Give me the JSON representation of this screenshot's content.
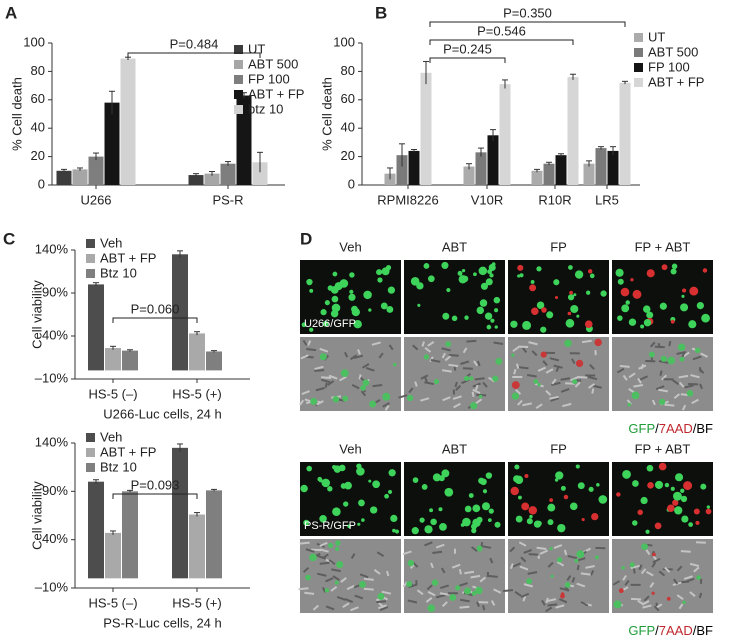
{
  "chart_data": [
    {
      "type": "bar",
      "panel_label": "A",
      "ylabel": "% Cell death",
      "categories": [
        "U266",
        "PS-R"
      ],
      "series": [
        {
          "name": "UT",
          "color": "#3c3c3c",
          "values": [
            10,
            7
          ],
          "errors": [
            1,
            1
          ]
        },
        {
          "name": "ABT 500",
          "color": "#a6a6a6",
          "values": [
            11,
            8
          ],
          "errors": [
            1,
            1.5
          ]
        },
        {
          "name": "FP 100",
          "color": "#7e7e7e",
          "values": [
            20,
            15
          ],
          "errors": [
            2.5,
            1.5
          ]
        },
        {
          "name": "ABT + FP",
          "color": "#151515",
          "values": [
            58,
            63
          ],
          "errors": [
            8,
            2
          ]
        },
        {
          "name": "btz 10",
          "color": "#d2d2d2",
          "values": [
            89,
            16
          ],
          "errors": [
            1,
            7
          ]
        }
      ],
      "ylim": [
        0,
        100
      ],
      "yticks": [
        0,
        20,
        40,
        60,
        80,
        100
      ],
      "annotations": [
        "P=0.484"
      ]
    },
    {
      "type": "bar",
      "panel_label": "B",
      "ylabel": "% Cell death",
      "categories": [
        "RPMI8226",
        "V10R",
        "R10R",
        "LR5"
      ],
      "series": [
        {
          "name": "UT",
          "color": "#ababab",
          "values": [
            8,
            13,
            10,
            15
          ],
          "errors": [
            4,
            2,
            1,
            2
          ]
        },
        {
          "name": "ABT 500",
          "color": "#7a7a7a",
          "values": [
            21,
            23,
            15,
            26
          ],
          "errors": [
            8,
            3,
            1,
            1
          ]
        },
        {
          "name": "FP 100",
          "color": "#141414",
          "values": [
            24,
            35,
            21,
            24
          ],
          "errors": [
            1,
            4,
            1,
            3
          ]
        },
        {
          "name": "ABT + FP",
          "color": "#d6d6d6",
          "values": [
            79,
            71,
            76,
            72
          ],
          "errors": [
            8,
            3,
            2,
            1
          ]
        }
      ],
      "ylim": [
        0,
        100
      ],
      "yticks": [
        0,
        20,
        40,
        60,
        80,
        100
      ],
      "annotations": [
        "P=0.245",
        "P=0.546",
        "P=0.350"
      ]
    },
    {
      "type": "bar",
      "panel_label": "C",
      "ylabel": "Cell viability",
      "xlabel": "U266-Luc cells, 24 h",
      "categories": [
        "HS-5 (–)",
        "HS-5 (+)"
      ],
      "series": [
        {
          "name": "Veh",
          "color": "#4d4d4d",
          "values": [
            100,
            135
          ],
          "errors": [
            2,
            4
          ]
        },
        {
          "name": "ABT + FP",
          "color": "#a9a9a9",
          "values": [
            26,
            43
          ],
          "errors": [
            2,
            2
          ]
        },
        {
          "name": "Btz 10",
          "color": "#7f7f7f",
          "values": [
            23,
            22
          ],
          "errors": [
            1,
            1
          ]
        }
      ],
      "ylim": [
        -10,
        140
      ],
      "yticks": [
        {
          "value": -10,
          "label": "–10%"
        },
        {
          "value": 40,
          "label": "40%"
        },
        {
          "value": 90,
          "label": "90%"
        },
        {
          "value": 140,
          "label": "140%"
        }
      ],
      "annotations": [
        "P=0.060"
      ]
    },
    {
      "type": "bar",
      "ylabel": "Cell viability",
      "xlabel": "PS-R-Luc cells, 24 h",
      "categories": [
        "HS-5 (–)",
        "HS-5 (+)"
      ],
      "series": [
        {
          "name": "Veh",
          "color": "#4d4d4d",
          "values": [
            100,
            135
          ],
          "errors": [
            2,
            4
          ]
        },
        {
          "name": "ABT + FP",
          "color": "#a9a9a9",
          "values": [
            47,
            66
          ],
          "errors": [
            2,
            2
          ]
        },
        {
          "name": "Btz 10",
          "color": "#7f7f7f",
          "values": [
            90,
            91
          ],
          "errors": [
            1,
            1
          ]
        }
      ],
      "ylim": [
        -10,
        140
      ],
      "yticks": [
        {
          "value": -10,
          "label": "–10%"
        },
        {
          "value": 40,
          "label": "40%"
        },
        {
          "value": 90,
          "label": "90%"
        },
        {
          "value": 140,
          "label": "140%"
        }
      ],
      "annotations": [
        "P=0.093"
      ]
    }
  ],
  "panel_d": {
    "panel_label": "D",
    "groups": [
      {
        "columns": [
          "Veh",
          "ABT",
          "FP",
          "FP + ABT"
        ],
        "image_label": "U266/GFP"
      },
      {
        "columns": [
          "Veh",
          "ABT",
          "FP",
          "FP + ABT"
        ],
        "image_label": "PS-R/GFP"
      }
    ],
    "stain_legend": [
      {
        "text": "GFP",
        "color": "#1f9e3a"
      },
      {
        "text": "/",
        "color": "#000000"
      },
      {
        "text": "7AAD",
        "color": "#c0272d"
      },
      {
        "text": "/",
        "color": "#000000"
      },
      {
        "text": "BF",
        "color": "#000000"
      }
    ]
  }
}
